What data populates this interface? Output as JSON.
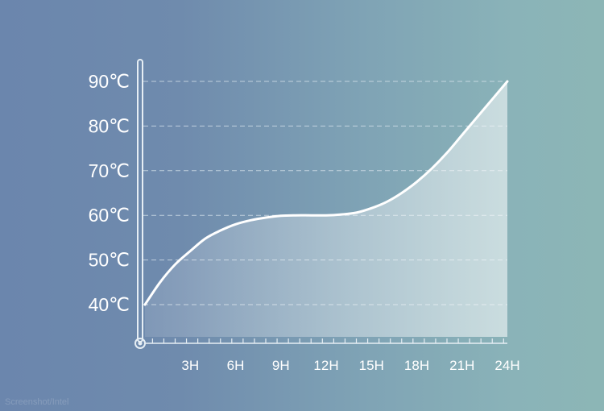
{
  "chart_data": {
    "type": "area",
    "ylabels": [
      "90℃",
      "80℃",
      "70℃",
      "60℃",
      "50℃",
      "40℃"
    ],
    "yticks": [
      90,
      80,
      70,
      60,
      50,
      40
    ],
    "xlabels": [
      "3H",
      "6H",
      "9H",
      "12H",
      "15H",
      "18H",
      "21H",
      "24H"
    ],
    "xticks": [
      3,
      6,
      9,
      12,
      15,
      18,
      21,
      24
    ],
    "xlim": [
      0,
      24
    ],
    "ylim": [
      40,
      90
    ],
    "series": [
      {
        "x": [
          0,
          1,
          2,
          3,
          4,
          5,
          6,
          7,
          8,
          9,
          10,
          11,
          12,
          13,
          14,
          15,
          16,
          17,
          18,
          19,
          20,
          21,
          22,
          23,
          24
        ],
        "values": [
          40,
          45,
          49,
          52,
          54.8,
          56.6,
          58,
          58.9,
          59.5,
          59.9,
          60,
          60,
          60,
          60.2,
          60.6,
          61.6,
          63,
          65,
          67.5,
          70.5,
          74,
          78,
          82,
          86,
          90
        ]
      }
    ],
    "grid": true,
    "gridstyle": "dashed"
  },
  "colors": {
    "curve": "#ffffff",
    "grid": "#dbe6ee",
    "thermometer": "#e6eef4",
    "fill": "#ffffff"
  },
  "watermark": "Screenshot/Intel"
}
